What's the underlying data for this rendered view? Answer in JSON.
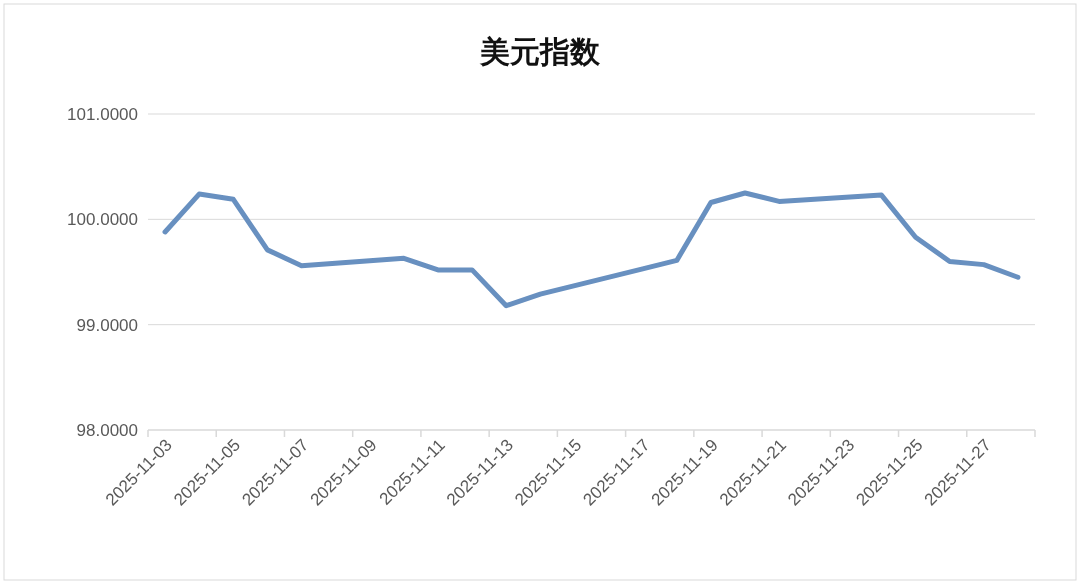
{
  "chart_data": {
    "type": "line",
    "title": "美元指数",
    "x": [
      "2025-11-03",
      "2025-11-04",
      "2025-11-05",
      "2025-11-06",
      "2025-11-07",
      "2025-11-10",
      "2025-11-11",
      "2025-11-12",
      "2025-11-13",
      "2025-11-14",
      "2025-11-17",
      "2025-11-18",
      "2025-11-19",
      "2025-11-20",
      "2025-11-21",
      "2025-11-24",
      "2025-11-25",
      "2025-11-26",
      "2025-11-27",
      "2025-11-28"
    ],
    "series": [
      {
        "color": "#6890c0",
        "values": [
          99.88,
          100.24,
          100.19,
          99.71,
          99.56,
          99.63,
          99.52,
          99.52,
          99.18,
          99.29,
          99.53,
          99.61,
          100.16,
          100.25,
          100.17,
          100.23,
          99.83,
          99.6,
          99.57,
          99.45
        ]
      }
    ],
    "xlim": [
      "2025-11-02T12:00",
      "2025-11-28T12:00"
    ],
    "xticks": [
      "2025-11-03",
      "2025-11-05",
      "2025-11-07",
      "2025-11-09",
      "2025-11-11",
      "2025-11-13",
      "2025-11-15",
      "2025-11-17",
      "2025-11-19",
      "2025-11-21",
      "2025-11-23",
      "2025-11-25",
      "2025-11-27"
    ],
    "ylim": [
      98,
      101
    ],
    "yticks": [
      {
        "value": 98,
        "label": "98.0000"
      },
      {
        "value": 99,
        "label": "99.0000"
      },
      {
        "value": 100,
        "label": "100.0000"
      },
      {
        "value": 101,
        "label": "101.0000"
      }
    ],
    "grid": "y",
    "marker": "none",
    "line_style": "solid"
  }
}
